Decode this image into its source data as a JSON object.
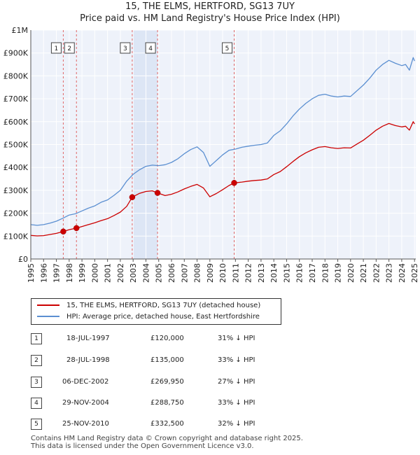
{
  "header": {
    "title_line1": "15, THE ELMS, HERTFORD, SG13 7UY",
    "title_line2": "Price paid vs. HM Land Registry's House Price Index (HPI)"
  },
  "legend": {
    "items": [
      {
        "label": "15, THE ELMS, HERTFORD, SG13 7UY (detached house)",
        "color": "#cc0000"
      },
      {
        "label": "HPI: Average price, detached house, East Hertfordshire",
        "color": "#5b8fd1"
      }
    ]
  },
  "sales": [
    {
      "id": "1",
      "date": "18-JUL-1997",
      "price": "£120,000",
      "hpi": "31% ↓ HPI"
    },
    {
      "id": "2",
      "date": "28-JUL-1998",
      "price": "£135,000",
      "hpi": "33% ↓ HPI"
    },
    {
      "id": "3",
      "date": "06-DEC-2002",
      "price": "£269,950",
      "hpi": "27% ↓ HPI"
    },
    {
      "id": "4",
      "date": "29-NOV-2004",
      "price": "£288,750",
      "hpi": "33% ↓ HPI"
    },
    {
      "id": "5",
      "date": "25-NOV-2010",
      "price": "£332,500",
      "hpi": "32% ↓ HPI"
    }
  ],
  "footer": {
    "line1": "Contains HM Land Registry data © Crown copyright and database right 2025.",
    "line2": "This data is licensed under the Open Government Licence v3.0."
  },
  "chart_data": {
    "type": "line",
    "title": "15, THE ELMS, HERTFORD, SG13 7UY — Price paid vs. HM Land Registry's House Price Index (HPI)",
    "xlabel": "",
    "ylabel": "",
    "xlim": [
      1995,
      2025.1
    ],
    "ylim": [
      0,
      1000000
    ],
    "x_ticks": [
      1995,
      1996,
      1997,
      1998,
      1999,
      2000,
      2001,
      2002,
      2003,
      2004,
      2005,
      2006,
      2007,
      2008,
      2009,
      2010,
      2011,
      2012,
      2013,
      2014,
      2015,
      2016,
      2017,
      2018,
      2019,
      2020,
      2021,
      2022,
      2023,
      2024,
      2025
    ],
    "y_ticks": [
      {
        "value": 0,
        "label": "£0"
      },
      {
        "value": 100000,
        "label": "£100K"
      },
      {
        "value": 200000,
        "label": "£200K"
      },
      {
        "value": 300000,
        "label": "£300K"
      },
      {
        "value": 400000,
        "label": "£400K"
      },
      {
        "value": 500000,
        "label": "£500K"
      },
      {
        "value": 600000,
        "label": "£600K"
      },
      {
        "value": 700000,
        "label": "£700K"
      },
      {
        "value": 800000,
        "label": "£800K"
      },
      {
        "value": 900000,
        "label": "£900K"
      },
      {
        "value": 1000000,
        "label": "£1M"
      }
    ],
    "grid": true,
    "series": [
      {
        "name": "HPI: Average price, detached house, East Hertfordshire",
        "color": "#5b8fd1",
        "x": [
          1995,
          1995.5,
          1996,
          1996.5,
          1997,
          1997.5,
          1998,
          1998.5,
          1999,
          1999.5,
          2000,
          2000.5,
          2001,
          2001.5,
          2002,
          2002.5,
          2003,
          2003.5,
          2004,
          2004.5,
          2005,
          2005.5,
          2006,
          2006.5,
          2007,
          2007.5,
          2008,
          2008.5,
          2009,
          2009.3,
          2009.7,
          2010,
          2010.5,
          2011,
          2011.5,
          2012,
          2012.5,
          2013,
          2013.5,
          2014,
          2014.5,
          2015,
          2015.5,
          2016,
          2016.5,
          2017,
          2017.5,
          2018,
          2018.5,
          2019,
          2019.5,
          2020,
          2020.5,
          2021,
          2021.5,
          2022,
          2022.5,
          2023,
          2023.5,
          2024,
          2024.3,
          2024.6,
          2024.9,
          2025
        ],
        "values": [
          150000,
          147000,
          150000,
          157000,
          165000,
          178000,
          192000,
          198000,
          210000,
          222000,
          232000,
          248000,
          258000,
          278000,
          300000,
          340000,
          370000,
          390000,
          405000,
          410000,
          408000,
          412000,
          422000,
          438000,
          460000,
          478000,
          490000,
          465000,
          405000,
          420000,
          440000,
          455000,
          475000,
          480000,
          488000,
          493000,
          497000,
          500000,
          507000,
          540000,
          560000,
          590000,
          625000,
          655000,
          680000,
          700000,
          715000,
          720000,
          712000,
          708000,
          712000,
          710000,
          735000,
          760000,
          790000,
          825000,
          850000,
          868000,
          855000,
          845000,
          850000,
          825000,
          880000,
          865000
        ]
      },
      {
        "name": "15, THE ELMS, HERTFORD, SG13 7UY (detached house)",
        "color": "#cc0000",
        "x": [
          1995,
          1995.5,
          1996,
          1996.5,
          1997,
          1997.54,
          1998,
          1998.57,
          1999,
          1999.5,
          2000,
          2000.5,
          2001,
          2001.5,
          2002,
          2002.5,
          2002.93,
          2003.5,
          2004,
          2004.5,
          2004.91,
          2005.5,
          2006,
          2006.5,
          2007,
          2007.5,
          2008,
          2008.5,
          2009,
          2009.5,
          2010,
          2010.5,
          2010.9,
          2011.5,
          2012,
          2012.5,
          2013,
          2013.5,
          2014,
          2014.5,
          2015,
          2015.5,
          2016,
          2016.5,
          2017,
          2017.5,
          2018,
          2018.5,
          2019,
          2019.5,
          2020,
          2020.5,
          2021,
          2021.5,
          2022,
          2022.5,
          2023,
          2023.5,
          2024,
          2024.3,
          2024.6,
          2024.9,
          2025
        ],
        "values": [
          103000,
          101000,
          102000,
          107000,
          112000,
          120000,
          128000,
          135000,
          142000,
          150000,
          158000,
          168000,
          176000,
          190000,
          205000,
          230000,
          269950,
          287000,
          295000,
          298000,
          288750,
          277000,
          283000,
          293000,
          306000,
          317000,
          326000,
          310000,
          272000,
          286000,
          303000,
          321000,
          332500,
          336000,
          340000,
          343000,
          345000,
          350000,
          369000,
          382000,
          403000,
          426000,
          447000,
          464000,
          477000,
          488000,
          491000,
          486000,
          483000,
          486000,
          485000,
          502000,
          519000,
          540000,
          563000,
          580000,
          592000,
          583000,
          577000,
          580000,
          563000,
          600000,
          590000
        ]
      }
    ],
    "sales": [
      {
        "label": "1",
        "x": 1997.54,
        "value": 120000
      },
      {
        "label": "2",
        "x": 1998.57,
        "value": 135000
      },
      {
        "label": "3",
        "x": 2002.93,
        "value": 269950
      },
      {
        "label": "4",
        "x": 2004.91,
        "value": 288750
      },
      {
        "label": "5",
        "x": 2010.9,
        "value": 332500
      }
    ],
    "shaded_spans": [
      [
        2002.93,
        2004.91
      ]
    ]
  }
}
